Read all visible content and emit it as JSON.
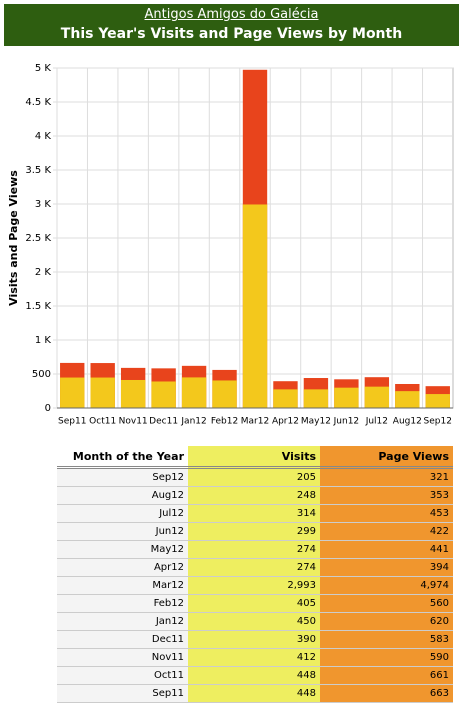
{
  "header": {
    "site": "Antigos Amigos do Galécia",
    "title": "This Year's Visits and Page Views by Month"
  },
  "chart_data": {
    "type": "bar",
    "ylabel": "Visits and Page Views",
    "categories": [
      "Sep11",
      "Oct11",
      "Nov11",
      "Dec11",
      "Jan12",
      "Feb12",
      "Mar12",
      "Apr12",
      "May12",
      "Jun12",
      "Jul12",
      "Aug12",
      "Sep12"
    ],
    "series": [
      {
        "name": "Page Views",
        "color": "#e8441c",
        "values": [
          663,
          661,
          590,
          583,
          620,
          560,
          4974,
          394,
          441,
          422,
          453,
          353,
          321
        ]
      },
      {
        "name": "Visits",
        "color": "#f3c81c",
        "values": [
          448,
          448,
          412,
          390,
          450,
          405,
          2993,
          274,
          274,
          299,
          314,
          248,
          205
        ]
      }
    ],
    "ylim": [
      0,
      5000
    ],
    "yticks": [
      0,
      500,
      {
        "value": 1000,
        "label": "1 K"
      },
      {
        "value": 1500,
        "label": "1.5 K"
      },
      {
        "value": 2000,
        "label": "2 K"
      },
      {
        "value": 2500,
        "label": "2.5 K"
      },
      {
        "value": 3000,
        "label": "3 K"
      },
      {
        "value": 3500,
        "label": "3.5 K"
      },
      {
        "value": 4000,
        "label": "4 K"
      },
      {
        "value": 4500,
        "label": "4.5 K"
      },
      {
        "value": 5000,
        "label": "5 K"
      }
    ],
    "grid": true
  },
  "table": {
    "columns": [
      "Month of the Year",
      "Visits",
      "Page Views"
    ],
    "rows": [
      [
        "Sep12",
        "205",
        "321"
      ],
      [
        "Aug12",
        "248",
        "353"
      ],
      [
        "Jul12",
        "314",
        "453"
      ],
      [
        "Jun12",
        "299",
        "422"
      ],
      [
        "May12",
        "274",
        "441"
      ],
      [
        "Apr12",
        "274",
        "394"
      ],
      [
        "Mar12",
        "2,993",
        "4,974"
      ],
      [
        "Feb12",
        "405",
        "560"
      ],
      [
        "Jan12",
        "450",
        "620"
      ],
      [
        "Dec11",
        "390",
        "583"
      ],
      [
        "Nov11",
        "412",
        "590"
      ],
      [
        "Oct11",
        "448",
        "661"
      ],
      [
        "Sep11",
        "448",
        "663"
      ]
    ]
  }
}
